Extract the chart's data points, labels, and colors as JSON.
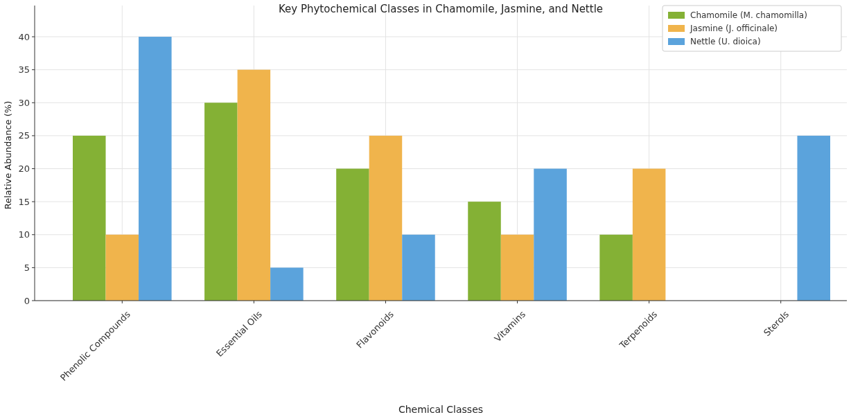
{
  "chart_data": {
    "type": "bar",
    "title": "Key Phytochemical Classes in Chamomile, Jasmine, and Nettle",
    "xlabel": "Chemical Classes",
    "ylabel": "Relative Abundance (%)",
    "categories": [
      "Phenolic Compounds",
      "Essential Oils",
      "Flavonoids",
      "Vitamins",
      "Terpenoids",
      "Sterols"
    ],
    "series": [
      {
        "name": "Chamomile (M. chamomilla)",
        "color": "#84b135",
        "values": [
          25,
          30,
          20,
          15,
          10,
          0
        ]
      },
      {
        "name": "Jasmine (J. officinale)",
        "color": "#f0b44c",
        "values": [
          10,
          35,
          25,
          10,
          20,
          0
        ]
      },
      {
        "name": "Nettle (U. dioica)",
        "color": "#5ba3dc",
        "values": [
          40,
          5,
          10,
          20,
          0,
          25
        ]
      }
    ],
    "ylim": [
      0,
      42
    ],
    "yticks": [
      0,
      5,
      10,
      15,
      20,
      25,
      30,
      35,
      40
    ],
    "grid": true,
    "legend": "top right"
  }
}
